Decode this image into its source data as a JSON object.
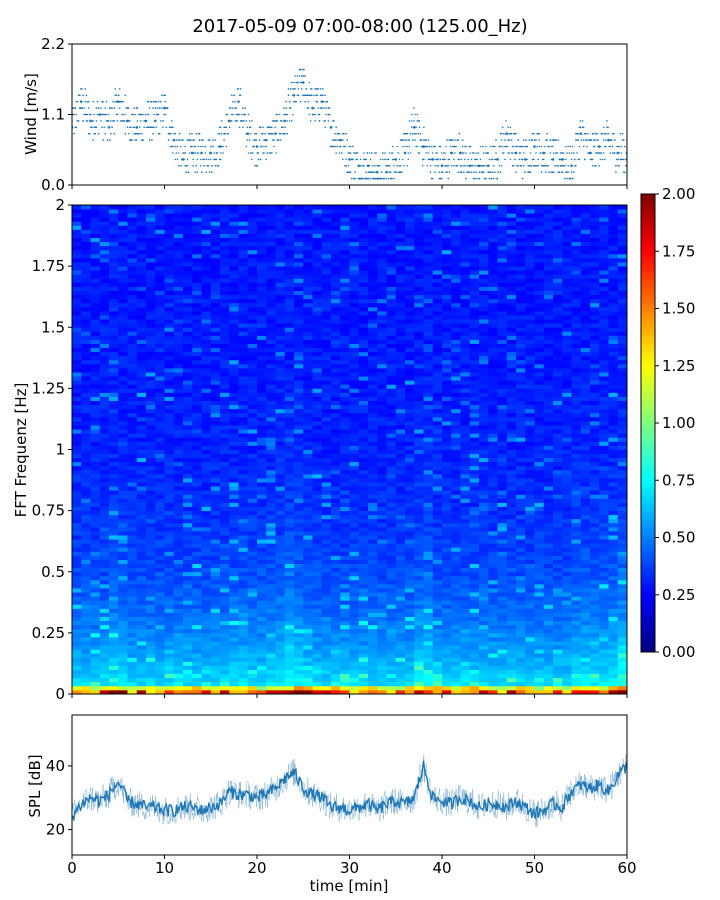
{
  "figure_title": "2017-05-09 07:00-08:00 (125.00_Hz)",
  "colors": {
    "series": "#1f77b4",
    "colormap": [
      "#00007f",
      "#0000ff",
      "#007fff",
      "#00ffff",
      "#7fff7f",
      "#ffff00",
      "#ff7f00",
      "#ff0000",
      "#7f0000"
    ]
  },
  "chart_data": [
    {
      "type": "scatter",
      "name": "wind",
      "ylabel": "Wind [m/s]",
      "xlim": [
        0,
        60
      ],
      "ylim": [
        0,
        2.2
      ],
      "yticks": [
        "0.0",
        "1.1",
        "2.2"
      ],
      "x": [
        0,
        1,
        2,
        3,
        4,
        5,
        6,
        7,
        8,
        9,
        10,
        11,
        12,
        13,
        14,
        15,
        16,
        17,
        18,
        19,
        20,
        21,
        22,
        23,
        24,
        25,
        26,
        27,
        28,
        29,
        30,
        31,
        32,
        33,
        34,
        35,
        36,
        37,
        38,
        39,
        40,
        41,
        42,
        43,
        44,
        45,
        46,
        47,
        48,
        49,
        50,
        51,
        52,
        53,
        54,
        55,
        56,
        57,
        58,
        59,
        60
      ],
      "y": [
        0.9,
        1.3,
        1.0,
        1.1,
        0.9,
        1.3,
        1.0,
        0.9,
        1.0,
        1.0,
        1.2,
        0.7,
        0.4,
        0.5,
        0.5,
        0.5,
        0.6,
        1.0,
        1.3,
        0.8,
        0.6,
        0.7,
        0.8,
        1.0,
        1.4,
        1.6,
        1.2,
        1.3,
        0.9,
        0.7,
        0.4,
        0.3,
        0.3,
        0.2,
        0.2,
        0.4,
        0.5,
        0.9,
        0.6,
        0.4,
        0.3,
        0.5,
        0.5,
        0.3,
        0.3,
        0.3,
        0.4,
        0.8,
        0.5,
        0.4,
        0.6,
        0.5,
        0.4,
        0.4,
        0.3,
        0.8,
        0.5,
        0.6,
        0.7,
        0.5,
        0.5
      ]
    },
    {
      "type": "heatmap",
      "name": "spectrogram",
      "ylabel": "FFT Frequenz [Hz]",
      "xlim": [
        0,
        60
      ],
      "ylim": [
        0,
        2
      ],
      "yticks": [
        "0",
        "0.25",
        "0.5",
        "0.75",
        "1",
        "1.25",
        "1.5",
        "1.75",
        "2"
      ],
      "colorbar": {
        "range": [
          0.0,
          2.0
        ],
        "ticks": [
          "0.00",
          "0.25",
          "0.50",
          "0.75",
          "1.00",
          "1.25",
          "1.50",
          "1.75",
          "2.00"
        ]
      }
    },
    {
      "type": "line",
      "name": "spl",
      "ylabel": "SPL [dB]",
      "xlabel": "time [min]",
      "xlim": [
        0,
        60
      ],
      "ylim": [
        12,
        56
      ],
      "xticks": [
        "0",
        "10",
        "20",
        "30",
        "40",
        "50",
        "60"
      ],
      "yticks": [
        "20",
        "40"
      ],
      "x": [
        0,
        1,
        2,
        3,
        4,
        5,
        6,
        7,
        8,
        9,
        10,
        11,
        12,
        13,
        14,
        15,
        16,
        17,
        18,
        19,
        20,
        21,
        22,
        23,
        24,
        25,
        26,
        27,
        28,
        29,
        30,
        31,
        32,
        33,
        34,
        35,
        36,
        37,
        38,
        39,
        40,
        41,
        42,
        43,
        44,
        45,
        46,
        47,
        48,
        49,
        50,
        51,
        52,
        53,
        54,
        55,
        56,
        57,
        58,
        59,
        60
      ],
      "y": [
        24,
        28,
        30,
        29,
        31,
        35,
        29,
        28,
        27,
        27,
        26,
        26,
        27,
        27,
        26,
        27,
        28,
        32,
        31,
        31,
        30,
        31,
        33,
        36,
        38,
        33,
        31,
        30,
        27,
        27,
        26,
        27,
        28,
        26,
        28,
        29,
        28,
        30,
        40,
        30,
        29,
        28,
        30,
        29,
        27,
        28,
        28,
        27,
        29,
        27,
        25,
        26,
        28,
        27,
        32,
        34,
        33,
        34,
        32,
        37,
        40
      ]
    }
  ]
}
